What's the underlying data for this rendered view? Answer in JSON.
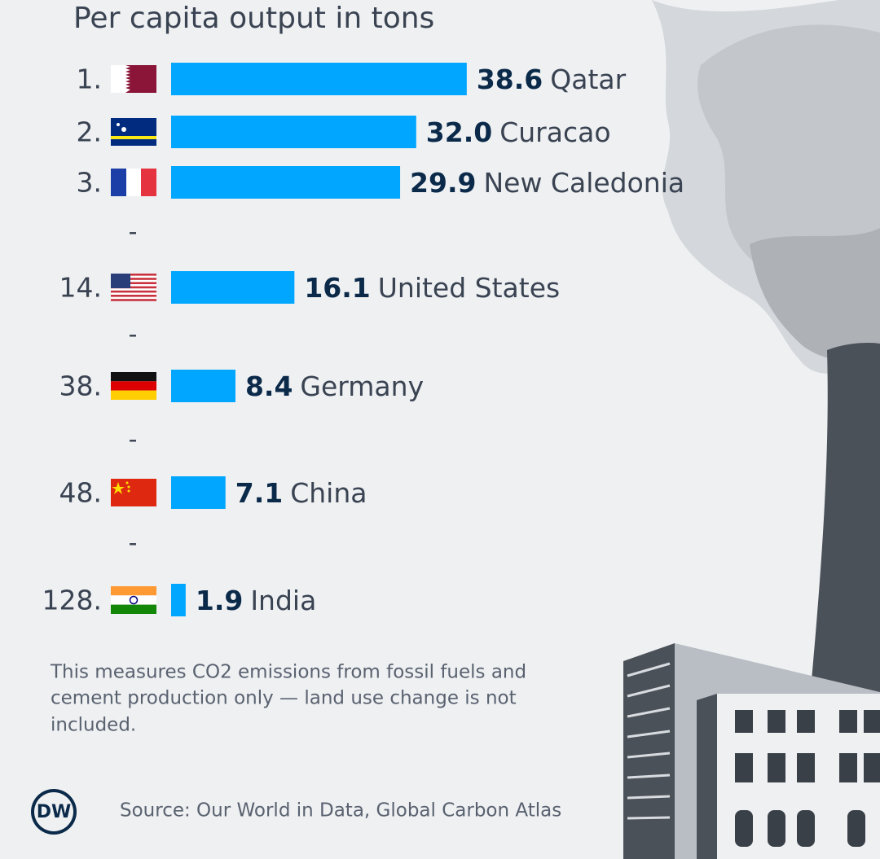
{
  "chart_data": {
    "type": "bar",
    "orientation": "horizontal",
    "title": "Per capita output in tons",
    "ranks": [
      "1.",
      "2.",
      "3.",
      "14.",
      "38.",
      "48.",
      "128."
    ],
    "categories": [
      "Qatar",
      "Curacao",
      "New Caledonia",
      "United States",
      "Germany",
      "China",
      "India"
    ],
    "values": [
      38.6,
      32.0,
      29.9,
      16.1,
      8.4,
      7.1,
      1.9
    ],
    "value_labels": [
      "38.6",
      "32.0",
      "29.9",
      "16.1",
      "8.4",
      "7.1",
      "1.9"
    ],
    "color": "#00a6ff",
    "separator": "-",
    "note": [
      "This measures CO2 emissions from fossil fuels and",
      "cement production only — land use change is not",
      "included."
    ],
    "source": "Source: Our World in Data, Global Carbon Atlas",
    "logo": "DW"
  }
}
